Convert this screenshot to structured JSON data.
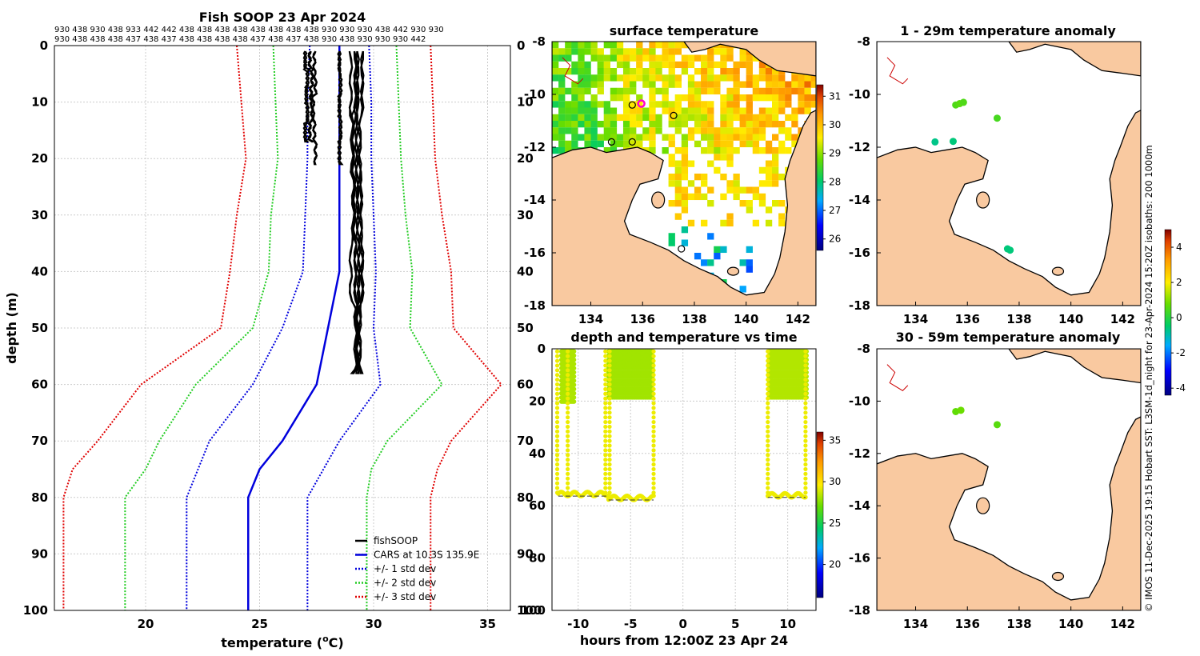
{
  "colors": {
    "land": "#f9c9a0",
    "coast": "#000000",
    "cars": "#0000dd",
    "std1": "#0000dd",
    "std2": "#22cc22",
    "std3": "#e00000",
    "fish": "#000000",
    "grid": "#cccccc"
  },
  "chart_data": [
    {
      "id": "profile",
      "type": "line",
      "title": "Fish SOOP 23 Apr 2024",
      "xlabel_main": "temperature (",
      "xlabel_sup": "o",
      "xlabel_end": "C)",
      "ylabel": "depth (m)",
      "xlim": [
        16,
        36
      ],
      "ylim": [
        100,
        0
      ],
      "xticks": [
        20,
        25,
        30,
        35
      ],
      "yticks": [
        0,
        10,
        20,
        30,
        40,
        50,
        60,
        70,
        80,
        90,
        100
      ],
      "top_labels": [
        "930 438 930 438 933 442 442 438 438 438 438 438 438 438 438 930 930 930 438 442 930 930",
        "930 438 438 438 437 438 437 438 438 438 438 437 438 437 438 930 438 930 930 930 442"
      ],
      "depths": [
        0,
        10,
        20,
        30,
        40,
        50,
        60,
        70,
        75,
        80,
        100
      ],
      "series": [
        {
          "name": "CARS at 10.3S 135.9E",
          "values": [
            28.5,
            28.5,
            28.5,
            28.5,
            28.5,
            28.0,
            27.5,
            26.0,
            25.0,
            24.5,
            24.5
          ]
        },
        {
          "name": "+/- 1 std dev upper",
          "values": [
            29.8,
            29.9,
            29.9,
            30.0,
            30.1,
            30.0,
            30.3,
            28.5,
            27.8,
            27.1,
            27.1
          ]
        },
        {
          "name": "+/- 1 std dev lower",
          "values": [
            27.2,
            27.1,
            27.1,
            27.0,
            26.9,
            26.0,
            24.7,
            22.8,
            22.3,
            21.8,
            21.8
          ]
        },
        {
          "name": "+/- 2 std dev upper",
          "values": [
            31.0,
            31.1,
            31.2,
            31.4,
            31.7,
            31.6,
            33.0,
            30.6,
            29.9,
            29.7,
            29.7
          ]
        },
        {
          "name": "+/- 2 std dev lower",
          "values": [
            25.6,
            25.7,
            25.8,
            25.5,
            25.4,
            24.7,
            22.2,
            20.6,
            20.0,
            19.1,
            19.1
          ]
        },
        {
          "name": "+/- 3 std dev upper",
          "values": [
            32.5,
            32.6,
            32.7,
            33.0,
            33.4,
            33.5,
            35.6,
            33.4,
            32.8,
            32.5,
            32.5
          ]
        },
        {
          "name": "+/- 3 std dev lower",
          "values": [
            24.0,
            24.2,
            24.4,
            24.0,
            23.7,
            23.3,
            19.8,
            17.9,
            16.8,
            16.4,
            16.4
          ]
        }
      ],
      "fish_profiles": [
        {
          "depth_max": 17,
          "temps": [
            27.0,
            27.1,
            27.05,
            27.1,
            27.0,
            27.05
          ]
        },
        {
          "depth_max": 17,
          "temps": [
            27.2,
            27.3,
            27.25,
            27.3,
            27.2,
            27.3
          ]
        },
        {
          "depth_max": 21,
          "temps": [
            27.4,
            27.45,
            27.35,
            27.4,
            27.45,
            27.4
          ]
        },
        {
          "depth_max": 21,
          "temps": [
            28.5,
            28.55,
            28.5,
            28.55,
            28.5,
            28.55
          ]
        },
        {
          "depth_max": 58,
          "temps": [
            29.2,
            29.1,
            29.15,
            29.2,
            29.3,
            29.1
          ]
        },
        {
          "depth_max": 58,
          "temps": [
            29.0,
            29.05,
            29.1,
            29.0,
            29.2,
            29.15
          ]
        },
        {
          "depth_max": 58,
          "temps": [
            29.3,
            29.25,
            29.3,
            29.35,
            29.25,
            29.3
          ]
        },
        {
          "depth_max": 58,
          "temps": [
            29.5,
            29.4,
            29.45,
            29.5,
            29.4,
            29.45
          ]
        }
      ],
      "legend": [
        {
          "label": "fishSOOP",
          "color": "#000000",
          "dash": false
        },
        {
          "label": "CARS at 10.3S 135.9E",
          "color": "#0000dd",
          "dash": false
        },
        {
          "label": "+/- 1 std dev",
          "color": "#0000dd",
          "dash": true
        },
        {
          "label": "+/- 2 std dev",
          "color": "#22cc22",
          "dash": true
        },
        {
          "label": "+/- 3 std dev",
          "color": "#e00000",
          "dash": true
        }
      ]
    },
    {
      "id": "sst",
      "type": "heatmap",
      "title": "surface temperature",
      "xlim": [
        132.5,
        142.7
      ],
      "ylim": [
        -18,
        -8
      ],
      "xticks": [
        134,
        136,
        138,
        140,
        142
      ],
      "yticks": [
        -8,
        -10,
        -12,
        -14,
        -16,
        -18
      ],
      "colorbar": {
        "range": [
          25.6,
          31.4
        ],
        "ticks": [
          26,
          27,
          28,
          29,
          30,
          31
        ]
      },
      "markers": [
        {
          "lon": 135.95,
          "lat": -10.35,
          "color": "#ff00cc"
        },
        {
          "lon": 135.6,
          "lat": -10.4,
          "color": "#000000"
        },
        {
          "lon": 137.2,
          "lat": -10.8,
          "color": "#000000"
        },
        {
          "lon": 134.8,
          "lat": -11.8,
          "color": "#000000"
        },
        {
          "lon": 135.6,
          "lat": -11.8,
          "color": "#000000"
        },
        {
          "lon": 137.5,
          "lat": -15.85,
          "color": "#000000"
        }
      ]
    },
    {
      "id": "timeseries",
      "type": "scatter",
      "title": "depth and temperature vs time",
      "xlabel": "hours from 12:00Z 23 Apr 24",
      "xlim": [
        -12.5,
        12.7
      ],
      "ylim": [
        100,
        0
      ],
      "xticks": [
        -10,
        -5,
        0,
        5,
        10
      ],
      "yticks": [
        0,
        20,
        40,
        60,
        80,
        100
      ],
      "colorbar": {
        "range": [
          16,
          36
        ],
        "ticks": [
          20,
          25,
          30,
          35
        ]
      },
      "dives": [
        {
          "t_start": -11.6,
          "t_end": -10.3,
          "depth_max": 21,
          "temp": 28.2
        },
        {
          "t_start": -7.1,
          "t_end": -2.8,
          "depth_max": 20,
          "temp": 28.0
        },
        {
          "t_start": 8.2,
          "t_end": 11.8,
          "depth_max": 20,
          "temp": 28.3
        }
      ],
      "deep_segments": [
        {
          "t_start": -11.9,
          "t_end": -7.1,
          "depth": 55.5,
          "temp": 29.3
        },
        {
          "t_start": -7.1,
          "t_end": -2.8,
          "depth": 57.0,
          "temp": 29.3
        },
        {
          "t_start": 8.1,
          "t_end": 11.7,
          "depth": 56.0,
          "temp": 29.3
        }
      ],
      "verticals": [
        -12.0,
        -11.0,
        -7.4,
        -7.0,
        -2.8,
        8.1,
        11.7
      ]
    },
    {
      "id": "anom1",
      "type": "scatter",
      "title": "1 - 29m temperature anomaly",
      "xlim": [
        132.5,
        142.7
      ],
      "ylim": [
        -18,
        -8
      ],
      "xticks": [
        134,
        136,
        138,
        140,
        142
      ],
      "yticks": [
        -8,
        -10,
        -12,
        -14,
        -16,
        -18
      ],
      "points": [
        {
          "lon": 135.55,
          "lat": -10.4,
          "anom": 0.5
        },
        {
          "lon": 135.7,
          "lat": -10.35,
          "anom": 0.6
        },
        {
          "lon": 135.85,
          "lat": -10.3,
          "anom": 0.5
        },
        {
          "lon": 137.15,
          "lat": -10.9,
          "anom": 0.4
        },
        {
          "lon": 134.75,
          "lat": -11.8,
          "anom": -0.7
        },
        {
          "lon": 135.45,
          "lat": -11.78,
          "anom": -0.6
        },
        {
          "lon": 137.55,
          "lat": -15.85,
          "anom": -0.6
        },
        {
          "lon": 137.65,
          "lat": -15.9,
          "anom": -0.6
        }
      ]
    },
    {
      "id": "anom2",
      "type": "scatter",
      "title": "30 - 59m temperature anomaly",
      "xlim": [
        132.5,
        142.7
      ],
      "ylim": [
        -18,
        -8
      ],
      "xticks": [
        134,
        136,
        138,
        140,
        142
      ],
      "yticks": [
        -8,
        -10,
        -12,
        -14,
        -16,
        -18
      ],
      "colorbar": {
        "range": [
          -4.4,
          5.0
        ],
        "ticks": [
          -4,
          -2,
          0,
          2,
          4
        ]
      },
      "points": [
        {
          "lon": 135.55,
          "lat": -10.4,
          "anom": 0.7
        },
        {
          "lon": 135.75,
          "lat": -10.35,
          "anom": 0.8
        },
        {
          "lon": 137.15,
          "lat": -10.9,
          "anom": 0.6
        }
      ]
    }
  ],
  "footer_note": "© IMOS 11-Dec-2025 19:15 Hobart SST: L3SM-1d_night for 23-Apr-2024 15:20Z isobaths: 200  1000m"
}
